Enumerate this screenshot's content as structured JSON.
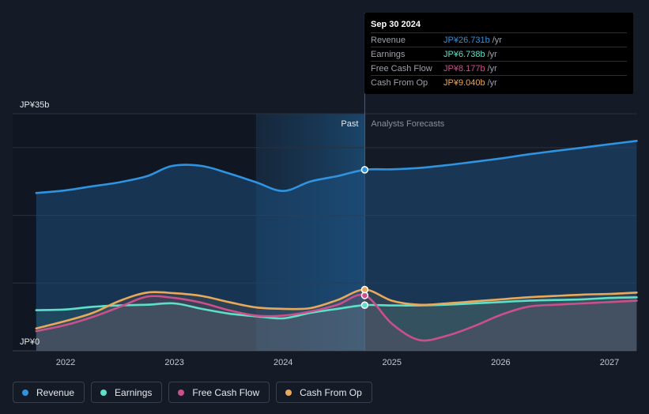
{
  "chart_data": {
    "type": "line",
    "title": "",
    "ylabel": "",
    "xlabel": "",
    "ylim": [
      0,
      35
    ],
    "y_tick_labels": {
      "top": "JP¥35b",
      "bottom": "JP¥0"
    },
    "x_ticks": [
      2022,
      2023,
      2024,
      2025,
      2026,
      2027
    ],
    "x_tick_labels": [
      "2022",
      "2023",
      "2024",
      "2025",
      "2026",
      "2027"
    ],
    "x_range": [
      2021.73,
      2027.25
    ],
    "past_label": "Past",
    "forecast_label": "Analysts Forecasts",
    "forecast_start": 2024.75,
    "shade_start": 2023.75,
    "series": [
      {
        "name": "Revenue",
        "color": "#2f93e0",
        "points": [
          [
            2021.73,
            23.3
          ],
          [
            2022.0,
            23.7
          ],
          [
            2022.25,
            24.3
          ],
          [
            2022.5,
            24.9
          ],
          [
            2022.75,
            25.8
          ],
          [
            2022.98,
            27.3
          ],
          [
            2023.25,
            27.3
          ],
          [
            2023.5,
            26.2
          ],
          [
            2023.75,
            24.9
          ],
          [
            2024.0,
            23.6
          ],
          [
            2024.25,
            25.0
          ],
          [
            2024.5,
            25.8
          ],
          [
            2024.75,
            26.73
          ],
          [
            2025.0,
            26.8
          ],
          [
            2025.25,
            27.0
          ],
          [
            2025.5,
            27.4
          ],
          [
            2025.75,
            27.9
          ],
          [
            2026.0,
            28.4
          ],
          [
            2026.25,
            29.0
          ],
          [
            2026.5,
            29.5
          ],
          [
            2026.75,
            30.0
          ],
          [
            2027.0,
            30.5
          ],
          [
            2027.25,
            31.0
          ]
        ]
      },
      {
        "name": "Earnings",
        "color": "#5ee0c8",
        "points": [
          [
            2021.73,
            6.0
          ],
          [
            2022.0,
            6.1
          ],
          [
            2022.25,
            6.5
          ],
          [
            2022.5,
            6.7
          ],
          [
            2022.75,
            6.8
          ],
          [
            2023.0,
            7.0
          ],
          [
            2023.25,
            6.2
          ],
          [
            2023.5,
            5.5
          ],
          [
            2023.75,
            5.1
          ],
          [
            2024.0,
            4.8
          ],
          [
            2024.25,
            5.6
          ],
          [
            2024.5,
            6.2
          ],
          [
            2024.75,
            6.738
          ],
          [
            2025.0,
            6.7
          ],
          [
            2025.25,
            6.7
          ],
          [
            2025.5,
            6.8
          ],
          [
            2025.75,
            7.0
          ],
          [
            2026.0,
            7.2
          ],
          [
            2026.25,
            7.4
          ],
          [
            2026.5,
            7.5
          ],
          [
            2026.75,
            7.6
          ],
          [
            2027.0,
            7.8
          ],
          [
            2027.25,
            7.9
          ]
        ]
      },
      {
        "name": "Free Cash Flow",
        "color": "#c9508a",
        "points": [
          [
            2021.73,
            2.9
          ],
          [
            2022.0,
            3.8
          ],
          [
            2022.25,
            5.0
          ],
          [
            2022.5,
            6.5
          ],
          [
            2022.75,
            8.0
          ],
          [
            2023.0,
            7.8
          ],
          [
            2023.25,
            7.1
          ],
          [
            2023.5,
            6.0
          ],
          [
            2023.75,
            5.2
          ],
          [
            2024.0,
            5.2
          ],
          [
            2024.25,
            5.8
          ],
          [
            2024.5,
            6.8
          ],
          [
            2024.75,
            8.177
          ],
          [
            2025.0,
            4.0
          ],
          [
            2025.25,
            1.6
          ],
          [
            2025.5,
            2.2
          ],
          [
            2025.75,
            3.6
          ],
          [
            2026.0,
            5.3
          ],
          [
            2026.25,
            6.5
          ],
          [
            2026.5,
            6.8
          ],
          [
            2026.75,
            7.0
          ],
          [
            2027.0,
            7.2
          ],
          [
            2027.25,
            7.4
          ]
        ]
      },
      {
        "name": "Cash From Op",
        "color": "#e9a95a",
        "points": [
          [
            2021.73,
            3.3
          ],
          [
            2022.0,
            4.4
          ],
          [
            2022.25,
            5.6
          ],
          [
            2022.5,
            7.4
          ],
          [
            2022.75,
            8.6
          ],
          [
            2023.0,
            8.5
          ],
          [
            2023.25,
            8.1
          ],
          [
            2023.5,
            7.2
          ],
          [
            2023.75,
            6.4
          ],
          [
            2024.0,
            6.2
          ],
          [
            2024.25,
            6.3
          ],
          [
            2024.5,
            7.5
          ],
          [
            2024.75,
            9.04
          ],
          [
            2025.0,
            7.4
          ],
          [
            2025.25,
            6.8
          ],
          [
            2025.5,
            7.0
          ],
          [
            2025.75,
            7.3
          ],
          [
            2026.0,
            7.6
          ],
          [
            2026.25,
            7.9
          ],
          [
            2026.5,
            8.1
          ],
          [
            2026.75,
            8.3
          ],
          [
            2027.0,
            8.4
          ],
          [
            2027.25,
            8.6
          ]
        ]
      }
    ],
    "highlight_x": 2024.75
  },
  "tooltip": {
    "date": "Sep 30 2024",
    "rows": [
      {
        "label": "Revenue",
        "value": "JP¥26.731b",
        "unit": "/yr",
        "color": "#2f93e0"
      },
      {
        "label": "Earnings",
        "value": "JP¥6.738b",
        "unit": "/yr",
        "color": "#5ee0c8"
      },
      {
        "label": "Free Cash Flow",
        "value": "JP¥8.177b",
        "unit": "/yr",
        "color": "#c9508a"
      },
      {
        "label": "Cash From Op",
        "value": "JP¥9.040b",
        "unit": "/yr",
        "color": "#e9a95a"
      }
    ]
  },
  "legend": [
    {
      "label": "Revenue",
      "color": "#2f93e0"
    },
    {
      "label": "Earnings",
      "color": "#5ee0c8"
    },
    {
      "label": "Free Cash Flow",
      "color": "#c9508a"
    },
    {
      "label": "Cash From Op",
      "color": "#e9a95a"
    }
  ]
}
